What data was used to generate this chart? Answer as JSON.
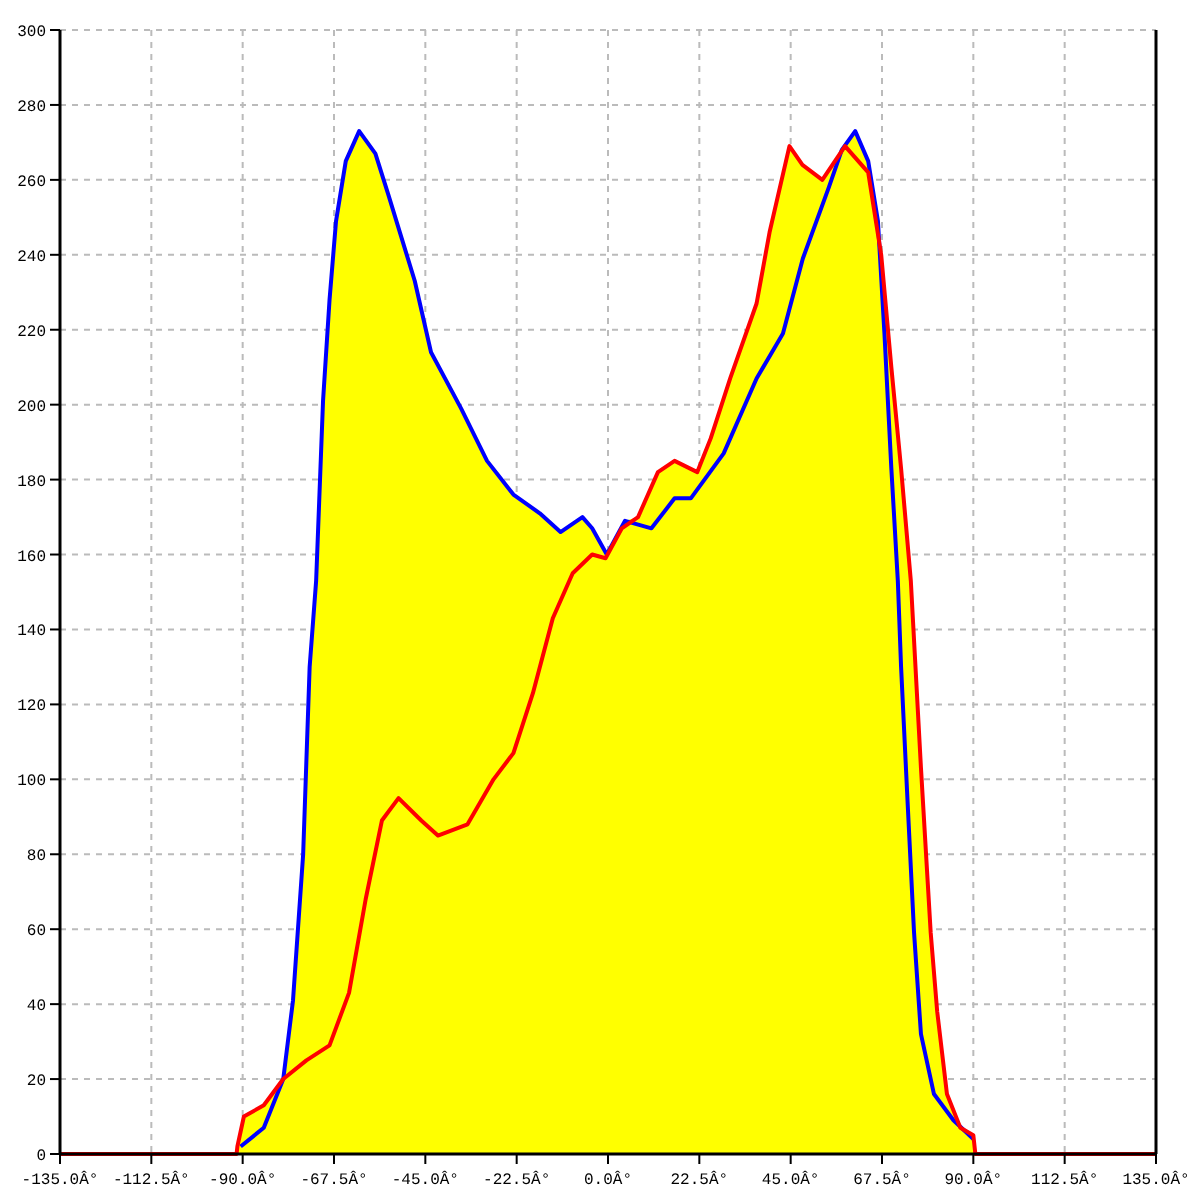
{
  "chart_data": {
    "type": "line",
    "xlim": [
      -135,
      135
    ],
    "ylim": [
      0,
      300
    ],
    "xticks": [
      {
        "value": -135,
        "label": "-135.0Â°"
      },
      {
        "value": -112.5,
        "label": "-112.5Â°"
      },
      {
        "value": -90,
        "label": "-90.0Â°"
      },
      {
        "value": -67.5,
        "label": "-67.5Â°"
      },
      {
        "value": -45,
        "label": "-45.0Â°"
      },
      {
        "value": -22.5,
        "label": "-22.5Â°"
      },
      {
        "value": 0,
        "label": "0.0Â°"
      },
      {
        "value": 22.5,
        "label": "22.5Â°"
      },
      {
        "value": 45,
        "label": "45.0Â°"
      },
      {
        "value": 67.5,
        "label": "67.5Â°"
      },
      {
        "value": 90,
        "label": "90.0Â°"
      },
      {
        "value": 112.5,
        "label": "112.5Â°"
      },
      {
        "value": 135,
        "label": "135.0Â°"
      }
    ],
    "yticks": [
      0,
      20,
      40,
      60,
      80,
      100,
      120,
      140,
      160,
      180,
      200,
      220,
      240,
      260,
      280,
      300
    ],
    "grid": true,
    "line_style": "solid",
    "series": [
      {
        "type": "area",
        "color": "#ffff00",
        "x": [
          -135,
          -91.5,
          -91.3,
          -89.7,
          -84.8,
          -80,
          -77.6,
          -75.1,
          -73.5,
          -71.9,
          -70.2,
          -68.6,
          -67,
          -64.6,
          -61.3,
          -57.3,
          -54.1,
          -47.6,
          -43.6,
          -36.2,
          -29.8,
          -23.3,
          -16.8,
          -11.7,
          -6.3,
          -3.9,
          -0.3,
          3.4,
          4.2,
          7.4,
          12.3,
          16.4,
          22,
          25.3,
          30.1,
          36.6,
          39.8,
          44.7,
          47.9,
          52.8,
          57.6,
          60.9,
          64.1,
          66.5,
          67.3,
          69.8,
          72.2,
          74.6,
          77.1,
          79.5,
          81.1,
          83.5,
          86.8,
          90,
          90.5,
          135
        ],
        "values": [
          0,
          0,
          2,
          10,
          13,
          20,
          41,
          80,
          130,
          153,
          201,
          228,
          249,
          265,
          273,
          267,
          256,
          233,
          214,
          199,
          185,
          176,
          171,
          166,
          170,
          167,
          160,
          167,
          169,
          170,
          182,
          185,
          182,
          191,
          207,
          227,
          246,
          269,
          264,
          260,
          268,
          273,
          265,
          249,
          240,
          210,
          183,
          153,
          103,
          59,
          38,
          16,
          7,
          5,
          0,
          0
        ]
      },
      {
        "color": "#0000ff",
        "x": [
          -90.5,
          -84.8,
          -80,
          -77.6,
          -75.1,
          -73.5,
          -71.9,
          -70.2,
          -68.6,
          -67,
          -64.6,
          -61.3,
          -57.3,
          -54.1,
          -47.6,
          -43.6,
          -36.2,
          -29.8,
          -23.3,
          -16.8,
          -11.7,
          -6.3,
          -3.9,
          -0.3,
          4.2,
          10.7,
          16.4,
          20.4,
          28.5,
          36.6,
          43.1,
          48,
          54.4,
          57.6,
          60.9,
          64.1,
          66.5,
          68.1,
          69.8,
          71.4,
          72.2,
          73.8,
          75.4,
          77.1,
          80.3,
          85.1,
          90
        ],
        "values": [
          2,
          7,
          20,
          41,
          80,
          130,
          153,
          201,
          228,
          249,
          265,
          273,
          267,
          256,
          233,
          214,
          199,
          185,
          176,
          171,
          166,
          170,
          167,
          160,
          169,
          167,
          175,
          175,
          187,
          207,
          219,
          239,
          258,
          268,
          273,
          265,
          249,
          219,
          183,
          153,
          130,
          94,
          59,
          32,
          16,
          9,
          4
        ]
      },
      {
        "color": "#ff0000",
        "x": [
          -135,
          -91.5,
          -91.3,
          -89.7,
          -84.8,
          -80,
          -74.3,
          -68.6,
          -63.8,
          -59.7,
          -55.7,
          -51.6,
          -46,
          -41.9,
          -34.6,
          -28.2,
          -23.3,
          -18.5,
          -13.6,
          -8.7,
          -3.9,
          -0.6,
          3.4,
          7.4,
          12.3,
          16.4,
          22,
          25.3,
          30.1,
          36.6,
          39.8,
          44.7,
          47.9,
          52.8,
          58.4,
          64.1,
          67.3,
          69.8,
          72.2,
          74.6,
          77.1,
          79.5,
          81.1,
          83.5,
          86.8,
          90,
          90.5,
          135
        ],
        "values": [
          0,
          0,
          2,
          10,
          13,
          20,
          25,
          29,
          43,
          68,
          89,
          95,
          89,
          85,
          88,
          100,
          107,
          123,
          143,
          155,
          160,
          159,
          167,
          170,
          182,
          185,
          182,
          191,
          207,
          227,
          246,
          269,
          264,
          260,
          269,
          262,
          240,
          210,
          183,
          153,
          103,
          59,
          38,
          16,
          7,
          5,
          0,
          0
        ]
      }
    ]
  }
}
